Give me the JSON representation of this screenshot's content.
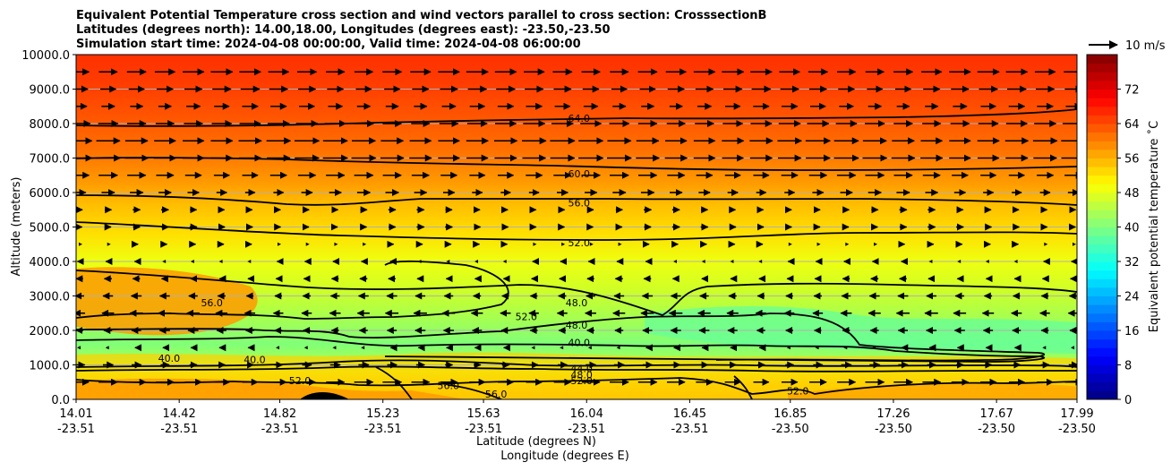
{
  "chart_data": {
    "type": "contourf",
    "title_lines": [
      "Equivalent Potential Temperature cross section and wind vectors parallel to cross section: CrosssectionB",
      "Latitudes (degrees north): 14.00,18.00, Longitudes (degrees east): -23.50,-23.50",
      "Simulation start time: 2024-04-08 00:00:00, Valid time: 2024-04-08 06:00:00"
    ],
    "xlabel_lat": "Latitude (degrees N)",
    "xlabel_lon": "Longitude (degrees E)",
    "ylabel": "Altitude (meters)",
    "xlim": [
      14.01,
      17.99
    ],
    "ylim": [
      0,
      10000
    ],
    "x_ticks": [
      {
        "lat": "14.01",
        "lon": "-23.51",
        "value": 14.01
      },
      {
        "lat": "14.42",
        "lon": "-23.51",
        "value": 14.42
      },
      {
        "lat": "14.82",
        "lon": "-23.51",
        "value": 14.82
      },
      {
        "lat": "15.23",
        "lon": "-23.51",
        "value": 15.23
      },
      {
        "lat": "15.63",
        "lon": "-23.51",
        "value": 15.63
      },
      {
        "lat": "16.04",
        "lon": "-23.51",
        "value": 16.04
      },
      {
        "lat": "16.45",
        "lon": "-23.51",
        "value": 16.45
      },
      {
        "lat": "16.85",
        "lon": "-23.50",
        "value": 16.85
      },
      {
        "lat": "17.26",
        "lon": "-23.50",
        "value": 17.26
      },
      {
        "lat": "17.67",
        "lon": "-23.50",
        "value": 17.67
      },
      {
        "lat": "17.99",
        "lon": "-23.50",
        "value": 17.99
      }
    ],
    "y_ticks": [
      "0.0",
      "1000.0",
      "2000.0",
      "3000.0",
      "4000.0",
      "5000.0",
      "6000.0",
      "7000.0",
      "8000.0",
      "9000.0",
      "10000.0"
    ],
    "y_tick_values": [
      0,
      1000,
      2000,
      3000,
      4000,
      5000,
      6000,
      7000,
      8000,
      9000,
      10000
    ],
    "colorbar": {
      "label": "Equivalent potential temperature $^\\circ$C",
      "label_text": "Equivalent potential temperature ˚C",
      "min": 0,
      "max": 80,
      "step": 2,
      "ticks": [
        "0",
        "8",
        "16",
        "24",
        "32",
        "40",
        "48",
        "56",
        "64",
        "72"
      ],
      "tick_values": [
        0,
        8,
        16,
        24,
        32,
        40,
        48,
        56,
        64,
        72
      ]
    },
    "quiver_key": {
      "label": "10 m/s",
      "speed": 10
    },
    "contour_levels": [
      40,
      44,
      48,
      52,
      56,
      60,
      64
    ],
    "contour_labels": [
      {
        "text": "64.0",
        "x": 16.01,
        "y": 8150
      },
      {
        "text": "60.0",
        "x": 16.01,
        "y": 6550
      },
      {
        "text": "56.0",
        "x": 16.01,
        "y": 5700
      },
      {
        "text": "52.0",
        "x": 16.01,
        "y": 4550
      },
      {
        "text": "48.0",
        "x": 16.0,
        "y": 2800
      },
      {
        "text": "52.0",
        "x": 15.8,
        "y": 2400
      },
      {
        "text": "48.0",
        "x": 16.0,
        "y": 2150
      },
      {
        "text": "40.0",
        "x": 16.01,
        "y": 1650
      },
      {
        "text": "44.0",
        "x": 16.02,
        "y": 900
      },
      {
        "text": "48.0",
        "x": 16.02,
        "y": 720
      },
      {
        "text": "52.0",
        "x": 16.02,
        "y": 550
      },
      {
        "text": "56.0",
        "x": 14.55,
        "y": 2800
      },
      {
        "text": "40.0",
        "x": 14.38,
        "y": 1200
      },
      {
        "text": "40.0",
        "x": 14.72,
        "y": 1150
      },
      {
        "text": "52.0",
        "x": 14.9,
        "y": 550
      },
      {
        "text": "56.0",
        "x": 15.49,
        "y": 400
      },
      {
        "text": "56.0",
        "x": 15.68,
        "y": 150
      },
      {
        "text": "52.0",
        "x": 16.88,
        "y": 250
      }
    ],
    "wind_rows": [
      {
        "alt": 9500,
        "speed": 7
      },
      {
        "alt": 9000,
        "speed": 6
      },
      {
        "alt": 8500,
        "speed": 5
      },
      {
        "alt": 8000,
        "speed": 7
      },
      {
        "alt": 7500,
        "speed": 8
      },
      {
        "alt": 7000,
        "speed": 8
      },
      {
        "alt": 6500,
        "speed": 6
      },
      {
        "alt": 6000,
        "speed": 4
      },
      {
        "alt": 5500,
        "speed": 2
      },
      {
        "alt": 5000,
        "speed": 2
      },
      {
        "alt": 4500,
        "speed": 1
      },
      {
        "alt": 4000,
        "speed": -1
      },
      {
        "alt": 3500,
        "speed": -2
      },
      {
        "alt": 3000,
        "speed": -3
      },
      {
        "alt": 2500,
        "speed": -4
      },
      {
        "alt": 2000,
        "speed": -3
      },
      {
        "alt": 1500,
        "speed": -1
      },
      {
        "alt": 1000,
        "speed": 3
      },
      {
        "alt": 500,
        "speed": 6
      }
    ]
  }
}
